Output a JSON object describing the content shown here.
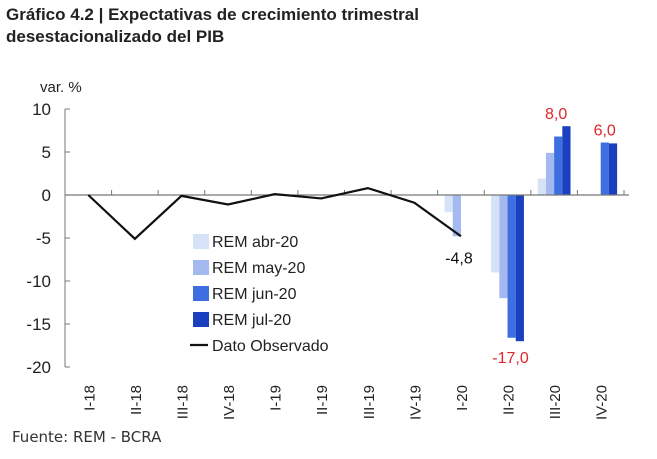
{
  "title_line1": "Gráfico 4.2 | Expectativas de crecimiento trimestral",
  "title_line2": "desestacionalizado del PIB",
  "source": "Fuente: REM - BCRA",
  "chart_data": {
    "type": "bar",
    "ylabel": "var. %",
    "ylim": [
      -20,
      10
    ],
    "yticks": [
      10,
      5,
      0,
      -5,
      -10,
      -15,
      -20
    ],
    "grid": false,
    "legend_position": "center-left",
    "categories": [
      "I-18",
      "II-18",
      "III-18",
      "IV-18",
      "I-19",
      "II-19",
      "III-19",
      "IV-19",
      "I-20",
      "II-20",
      "III-20",
      "IV-20"
    ],
    "series": [
      {
        "name": "REM abr-20",
        "type": "bar",
        "color": "#d6e2f7",
        "values": [
          null,
          null,
          null,
          null,
          null,
          null,
          null,
          null,
          -2.0,
          -9.0,
          1.9,
          null
        ]
      },
      {
        "name": "REM may-20",
        "type": "bar",
        "color": "#a3b9f0",
        "values": [
          null,
          null,
          null,
          null,
          null,
          null,
          null,
          null,
          -4.8,
          -12.0,
          4.9,
          null
        ]
      },
      {
        "name": "REM jun-20",
        "type": "bar",
        "color": "#3d6fe0",
        "values": [
          null,
          null,
          null,
          null,
          null,
          null,
          null,
          null,
          null,
          -16.6,
          6.8,
          6.1
        ]
      },
      {
        "name": "REM jul-20",
        "type": "bar",
        "color": "#1a3fbf",
        "values": [
          null,
          null,
          null,
          null,
          null,
          null,
          null,
          null,
          null,
          -17.0,
          8.0,
          6.0
        ]
      },
      {
        "name": "Dato Observado",
        "type": "line",
        "color": "#111111",
        "values": [
          0.0,
          -5.1,
          -0.1,
          -1.1,
          0.1,
          -0.4,
          0.8,
          -0.9,
          -4.8,
          null,
          null,
          null
        ]
      }
    ],
    "annotations": [
      {
        "category": "I-20",
        "text": "-4,8",
        "color": "#111111"
      },
      {
        "category": "II-20",
        "text": "-17,0",
        "color": "#e0262b"
      },
      {
        "category": "III-20",
        "text": "8,0",
        "color": "#e0262b"
      },
      {
        "category": "IV-20",
        "text": "6,0",
        "color": "#e0262b"
      }
    ]
  }
}
